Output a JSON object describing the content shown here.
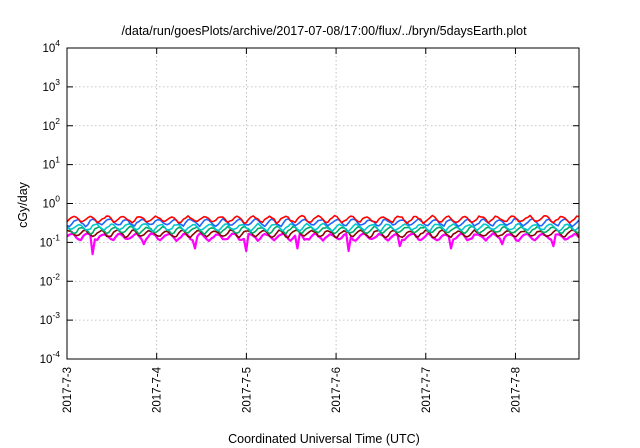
{
  "chart_data": {
    "type": "line",
    "title": "/data/run/goesPlots/archive/2017-07-08/17:00/flux/../bryn/5daysEarth.plot",
    "xlabel": "Coordinated Universal Time (UTC)",
    "ylabel": "cGy/day",
    "x_ticks": [
      "2017-7-3",
      "2017-7-4",
      "2017-7-5",
      "2017-7-6",
      "2017-7-7",
      "2017-7-8"
    ],
    "xlim": [
      "2017-07-03T00:00",
      "2017-07-08T17:00"
    ],
    "y_scale": "log",
    "ylim": [
      0.0001,
      10000
    ],
    "y_ticks": [
      {
        "base": "10",
        "exp": "-4"
      },
      {
        "base": "10",
        "exp": "-3"
      },
      {
        "base": "10",
        "exp": "-2"
      },
      {
        "base": "10",
        "exp": "-1"
      },
      {
        "base": "10",
        "exp": "0"
      },
      {
        "base": "10",
        "exp": "1"
      },
      {
        "base": "10",
        "exp": "2"
      },
      {
        "base": "10",
        "exp": "3"
      },
      {
        "base": "10",
        "exp": "4"
      }
    ],
    "grid": true,
    "series": [
      {
        "color": "#ff00ff",
        "level": 0.14,
        "dips": [
          0.05,
          0.09,
          0.07,
          0.06,
          0.07,
          0.06,
          0.08,
          0.07,
          0.09,
          0.08
        ]
      },
      {
        "color": "#8b0000",
        "level": 0.17
      },
      {
        "color": "#00aa66",
        "level": 0.21
      },
      {
        "color": "#00c8c8",
        "level": 0.25
      },
      {
        "color": "#1e64ff",
        "level": 0.33
      },
      {
        "color": "#ff0000",
        "level": 0.4
      }
    ]
  }
}
